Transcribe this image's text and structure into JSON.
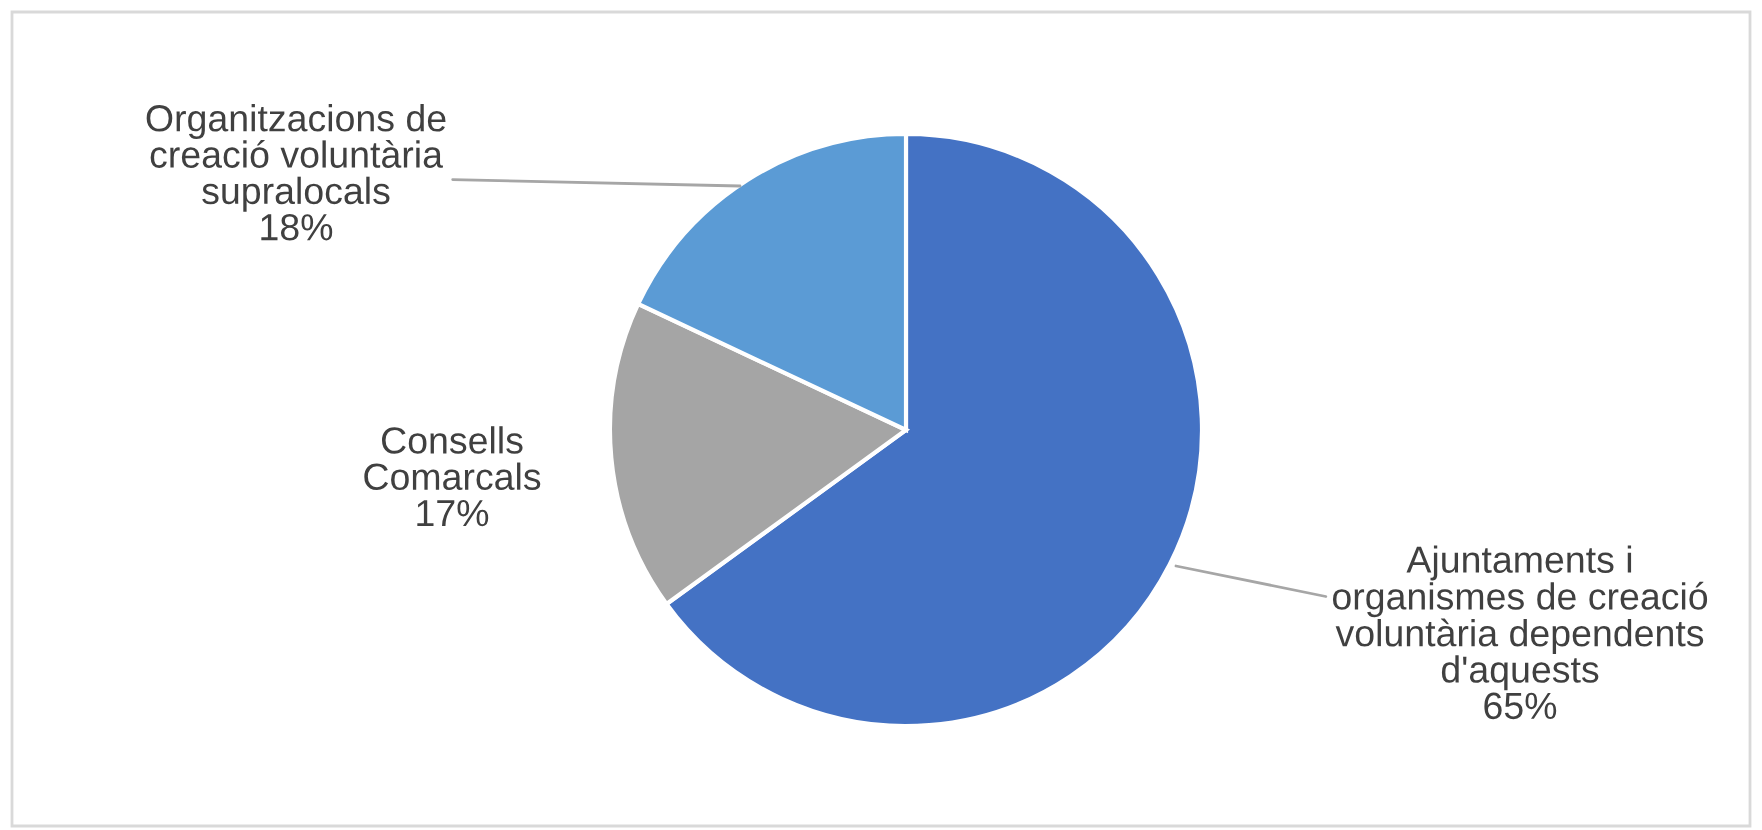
{
  "chart_data": {
    "type": "pie",
    "categories": [
      "Ajuntaments i\norganismes de creació\nvoluntària dependents\nd'aquests",
      "Consells\nComarcals",
      "Organitzacions de\ncreació voluntària\nsupralocals"
    ],
    "values": [
      65,
      17,
      18
    ],
    "colors": [
      "#4472c4",
      "#a5a5a5",
      "#5b9bd5"
    ],
    "value_labels": [
      "65%",
      "17%",
      "18%"
    ],
    "legend": false
  }
}
